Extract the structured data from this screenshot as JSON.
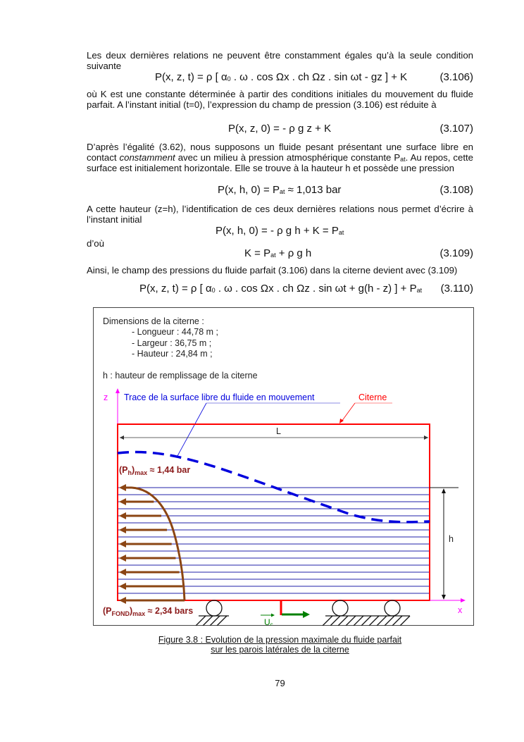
{
  "p1": "Les deux dernières relations ne peuvent être constamment égales qu’à la seule condition suivante",
  "eq106": {
    "text": "P(x, z, t) = ρ [ α",
    "sub": "0",
    "post": " . ω . cos Ωx . ch Ωz . sin ωt - gz ] + K",
    "num": "(3.106)"
  },
  "p2": "où K est une constante déterminée à partir des conditions initiales du mouvement du fluide parfait. A l’instant initial (t=0), l’expression du champ de pression (3.106) est réduite à",
  "eq107": {
    "text": "P(x, z, 0) = - ρ g z + K",
    "num": "(3.107)"
  },
  "p3": {
    "a": "D’après l’égalité (3.62), nous supposons un fluide pesant présentant une surface libre en contact ",
    "em": "constamment",
    "b": " avec un milieu à pression atmosphérique constante P",
    "sub": "at",
    "c": ". Au repos, cette surface est initialement horizontale. Elle se trouve à la hauteur h et possède une pression"
  },
  "eq108": {
    "text": "P(x, h, 0) = P",
    "sub": "at",
    "post": " ≈ 1,013 bar",
    "num": "(3.108)"
  },
  "p4": "A cette hauteur (z=h), l’identification de ces deux dernières relations nous permet d’écrire à l’instant initial",
  "eq_k": {
    "text": "P(x, h, 0) = - ρ g h + K = P",
    "sub": "at"
  },
  "p5": "d’où",
  "eq109": {
    "text": "K = P",
    "sub": "at",
    "post": " + ρ g h",
    "num": "(3.109)"
  },
  "p6": "Ainsi, le champ des pressions du fluide parfait (3.106) dans la citerne devient avec (3.109)",
  "eq110": {
    "text": "P(x, z, t) = ρ [ α",
    "sub": "0",
    "post": " . ω . cos Ωx . ch Ωz . sin ωt + g(h - z) ] + P",
    "sub2": "at",
    "num": "(3.110)"
  },
  "figure": {
    "dims_title": "Dimensions de la citerne :",
    "dims": [
      "- Longueur : 44,78 m ;",
      "- Largeur : 36,75 m ;",
      "- Hauteur : 24,84 m ;"
    ],
    "h_def": "h : hauteur de remplissage de la citerne",
    "z_label": "z",
    "x_label": "x",
    "trace_label": "Trace de la surface libre du fluide en mouvement",
    "citerne_label": "Citerne",
    "L_label": "L",
    "h_label": "h",
    "ph_max": {
      "a": "(P",
      "sub": "h",
      "b": ")",
      "sub2": "max",
      "c": " ≈ 1,44 bar"
    },
    "pfond_max": {
      "a": "(P",
      "sub": "FOND",
      "b": ")",
      "sub2": "max",
      "c": " ≈ 2,34 bars"
    },
    "uc": {
      "a": "U",
      "sub": "c"
    },
    "colors": {
      "tank": "#ff0000",
      "surface": "#0000dd",
      "pressure": "#8b4513",
      "axes": "#ff00ff",
      "velocity": "#008000",
      "labels": "#8b0000"
    }
  },
  "caption": [
    "Figure 3.8 : Evolution de la pression maximale du fluide parfait",
    "sur les parois latérales de la citerne"
  ],
  "page_number": "79"
}
